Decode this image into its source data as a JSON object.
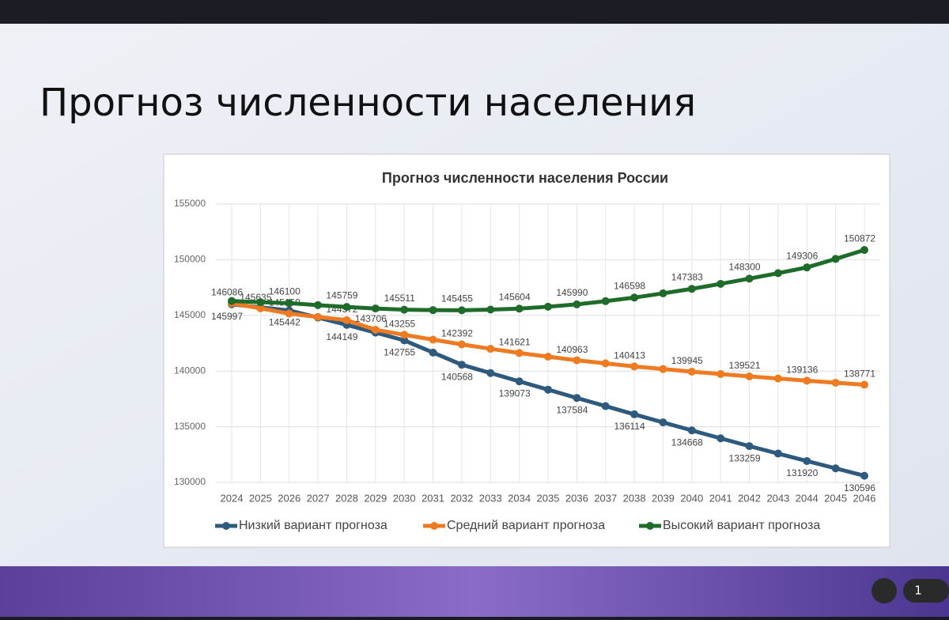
{
  "slide_title": "Прогноз численности населения",
  "toolbar_count": "1",
  "chart_data": {
    "type": "line",
    "title": "Прогноз численности населения России",
    "categories": [
      "2024",
      "2025",
      "2026",
      "2027",
      "2028",
      "2029",
      "2030",
      "2031",
      "2032",
      "2033",
      "2034",
      "2035",
      "2036",
      "2037",
      "2038",
      "2039",
      "2040",
      "2041",
      "2042",
      "2043",
      "2044",
      "2045",
      "2046"
    ],
    "ylim": [
      130000,
      155000
    ],
    "yticks": [
      130000,
      135000,
      140000,
      145000,
      150000,
      155000
    ],
    "grid": true,
    "legend": "bottom",
    "series": [
      {
        "name": "Низкий вариант прогноза",
        "color": "#2e5a7e",
        "values": [
          145997,
          145720,
          145442,
          144800,
          144149,
          143450,
          142755,
          141660,
          140568,
          139820,
          139073,
          138330,
          137584,
          136850,
          136114,
          135390,
          134668,
          133960,
          133259,
          132590,
          131920,
          131260,
          130596
        ],
        "value_labels": [
          "145997",
          null,
          "145442",
          null,
          "144149",
          null,
          "142755",
          null,
          "140568",
          null,
          "139073",
          null,
          "137584",
          null,
          "136114",
          null,
          "134668",
          null,
          "133259",
          null,
          "131920",
          null,
          "130596"
        ]
      },
      {
        "name": "Средний вариант прогноза",
        "color": "#ee7a22",
        "values": [
          146086,
          145635,
          145159,
          144860,
          144572,
          143706,
          143255,
          142820,
          142392,
          142000,
          141621,
          141290,
          140963,
          140690,
          140413,
          140180,
          139945,
          139730,
          139521,
          139330,
          139136,
          138950,
          138771
        ],
        "value_labels": [
          "146086",
          "145635",
          "145159",
          null,
          "144572",
          "143706",
          "143255",
          null,
          "142392",
          null,
          "141621",
          null,
          "140963",
          null,
          "140413",
          null,
          "139945",
          null,
          "139521",
          null,
          "139136",
          null,
          "138771"
        ]
      },
      {
        "name": "Высокий вариант прогноза",
        "color": "#1e6b2a",
        "values": [
          146290,
          146180,
          146100,
          145920,
          145759,
          145620,
          145511,
          145470,
          145455,
          145520,
          145604,
          145780,
          145990,
          146280,
          146598,
          146980,
          147383,
          147830,
          148300,
          148790,
          149306,
          150070,
          150872
        ],
        "value_labels": [
          null,
          null,
          "146100",
          null,
          "145759",
          null,
          "145511",
          null,
          "145455",
          null,
          "145604",
          null,
          "145990",
          null,
          "146598",
          null,
          "147383",
          null,
          "148300",
          null,
          "149306",
          null,
          "150872"
        ]
      }
    ]
  }
}
